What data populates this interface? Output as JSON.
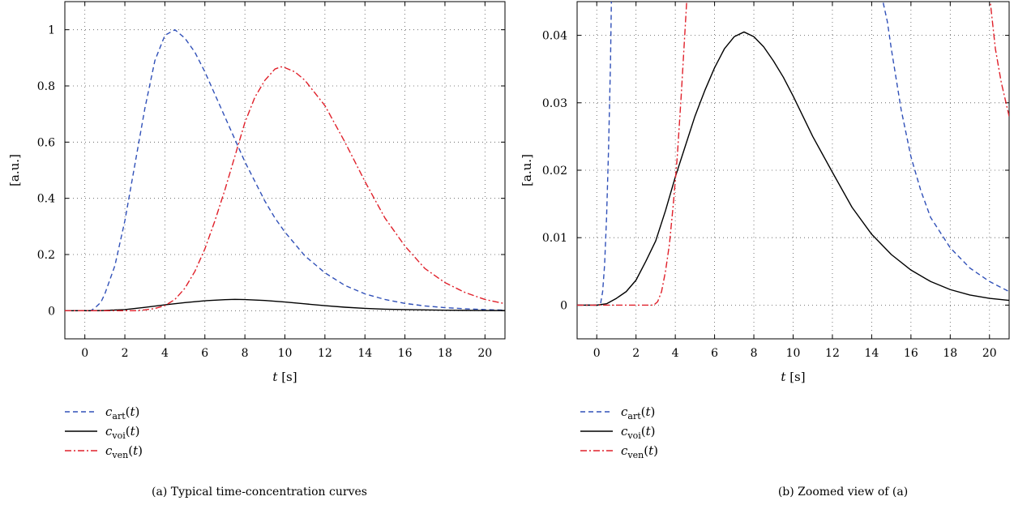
{
  "chart_data": [
    {
      "type": "line",
      "caption": "(a)  Typical time-concentration curves",
      "xlabel_var": "t",
      "xlabel_unit": " [s]",
      "ylabel": "[a.u.]",
      "xlim": [
        -1,
        21
      ],
      "ylim": [
        -0.1,
        1.1
      ],
      "xticks": [
        0,
        2,
        4,
        6,
        8,
        10,
        12,
        14,
        16,
        18,
        20
      ],
      "yticks": [
        0,
        0.2,
        0.4,
        0.6,
        0.8,
        1
      ],
      "ytick_labels": [
        "0",
        "0.2",
        "0.4",
        "0.6",
        "0.8",
        "1"
      ],
      "grid": true,
      "series": [
        {
          "key": "art",
          "name_base": "c",
          "name_sub": "art",
          "name_arg": "(t)",
          "color": "#3050b8",
          "dash": "6,4",
          "x": [
            -1,
            0,
            0.3,
            0.5,
            0.8,
            1,
            1.5,
            2,
            2.5,
            3,
            3.5,
            4,
            4.5,
            5,
            5.5,
            6,
            6.5,
            7,
            7.5,
            8,
            8.5,
            9,
            9.5,
            10,
            11,
            12,
            13,
            14,
            15,
            16,
            17,
            18,
            19,
            20,
            21
          ],
          "y": [
            0,
            0,
            0.0,
            0.01,
            0.03,
            0.06,
            0.16,
            0.32,
            0.52,
            0.72,
            0.89,
            0.98,
            1.0,
            0.97,
            0.92,
            0.85,
            0.77,
            0.69,
            0.61,
            0.53,
            0.46,
            0.39,
            0.33,
            0.28,
            0.195,
            0.135,
            0.09,
            0.06,
            0.04,
            0.026,
            0.017,
            0.011,
            0.007,
            0.004,
            0.002
          ]
        },
        {
          "key": "voi",
          "name_base": "c",
          "name_sub": "voi",
          "name_arg": "(t)",
          "color": "#000000",
          "dash": "",
          "x": [
            -1,
            0,
            0.5,
            1,
            2,
            3,
            4,
            5,
            6,
            7,
            7.5,
            8,
            9,
            10,
            11,
            12,
            13,
            14,
            15,
            16,
            17,
            18,
            19,
            20,
            21
          ],
          "y": [
            0,
            0,
            0.0002,
            0.001,
            0.004,
            0.012,
            0.021,
            0.029,
            0.0355,
            0.0395,
            0.0405,
            0.0398,
            0.0365,
            0.031,
            0.0245,
            0.018,
            0.0125,
            0.0085,
            0.0055,
            0.004,
            0.0028,
            0.0019,
            0.0013,
            0.0009,
            0.0006
          ]
        },
        {
          "key": "ven",
          "name_base": "c",
          "name_sub": "ven",
          "name_arg": "(t)",
          "color": "#e0202a",
          "dash": "8,3,2,3",
          "x": [
            -1,
            0,
            1,
            2,
            2.5,
            3,
            3.5,
            4,
            4.5,
            5,
            5.5,
            6,
            6.5,
            7,
            7.5,
            8,
            8.5,
            9,
            9.5,
            9.8,
            10,
            10.5,
            11,
            12,
            13,
            14,
            15,
            16,
            17,
            18,
            19,
            20,
            21
          ],
          "y": [
            0,
            0,
            0,
            0,
            0.0,
            0.003,
            0.008,
            0.018,
            0.04,
            0.08,
            0.14,
            0.22,
            0.32,
            0.43,
            0.55,
            0.67,
            0.76,
            0.82,
            0.86,
            0.868,
            0.865,
            0.85,
            0.82,
            0.73,
            0.6,
            0.46,
            0.33,
            0.23,
            0.15,
            0.1,
            0.065,
            0.04,
            0.025
          ]
        }
      ]
    },
    {
      "type": "line",
      "caption": "(b)  Zoomed view of (a)",
      "xlabel_var": "t",
      "xlabel_unit": " [s]",
      "ylabel": "[a.u.]",
      "xlim": [
        -1,
        21
      ],
      "ylim": [
        -0.005,
        0.045
      ],
      "xticks": [
        0,
        2,
        4,
        6,
        8,
        10,
        12,
        14,
        16,
        18,
        20
      ],
      "yticks": [
        0,
        0.01,
        0.02,
        0.03,
        0.04
      ],
      "ytick_labels": [
        "0",
        "0.01",
        "0.02",
        "0.03",
        "0.04"
      ],
      "grid": true,
      "series": [
        {
          "key": "art",
          "name_base": "c",
          "name_sub": "art",
          "name_arg": "(t)",
          "color": "#3050b8",
          "dash": "6,4",
          "x": [
            -1,
            0.1,
            0.2,
            0.3,
            0.4,
            0.5,
            0.6,
            0.7,
            0.75
          ],
          "y": [
            0,
            0,
            0.0003,
            0.002,
            0.006,
            0.013,
            0.023,
            0.036,
            0.046
          ],
          "x2": [
            14.5,
            14.8,
            15.0,
            15.5,
            16.0,
            16.5,
            17.0,
            18.0,
            19.0,
            20.0,
            21.0
          ],
          "y2": [
            0.046,
            0.042,
            0.038,
            0.029,
            0.022,
            0.017,
            0.013,
            0.0085,
            0.0055,
            0.0035,
            0.002
          ]
        },
        {
          "key": "voi",
          "name_base": "c",
          "name_sub": "voi",
          "name_arg": "(t)",
          "color": "#000000",
          "dash": "",
          "x": [
            -1,
            0,
            0.5,
            1,
            1.5,
            2,
            2.5,
            3,
            3.5,
            4,
            4.5,
            5,
            5.5,
            6,
            6.5,
            7,
            7.5,
            8,
            8.5,
            9,
            9.5,
            10,
            11,
            12,
            13,
            14,
            15,
            16,
            17,
            18,
            19,
            20,
            21
          ],
          "y": [
            0,
            0,
            0.0002,
            0.001,
            0.002,
            0.0037,
            0.0065,
            0.0095,
            0.014,
            0.019,
            0.0235,
            0.028,
            0.0318,
            0.0352,
            0.038,
            0.0398,
            0.0405,
            0.0398,
            0.0383,
            0.0362,
            0.0338,
            0.031,
            0.025,
            0.0197,
            0.0145,
            0.0105,
            0.0075,
            0.0052,
            0.0035,
            0.0023,
            0.0015,
            0.001,
            0.0007
          ]
        },
        {
          "key": "ven",
          "name_base": "c",
          "name_sub": "ven",
          "name_arg": "(t)",
          "color": "#e0202a",
          "dash": "8,3,2,3",
          "x": [
            -1,
            2.9,
            3.1,
            3.3,
            3.5,
            3.7,
            3.9,
            4.1,
            4.3,
            4.5,
            4.6
          ],
          "y": [
            0,
            0,
            0.0005,
            0.002,
            0.005,
            0.009,
            0.015,
            0.022,
            0.031,
            0.041,
            0.046
          ],
          "x2": [
            20.0,
            20.3,
            20.6,
            21.0
          ],
          "y2": [
            0.046,
            0.038,
            0.033,
            0.028
          ]
        }
      ]
    }
  ]
}
